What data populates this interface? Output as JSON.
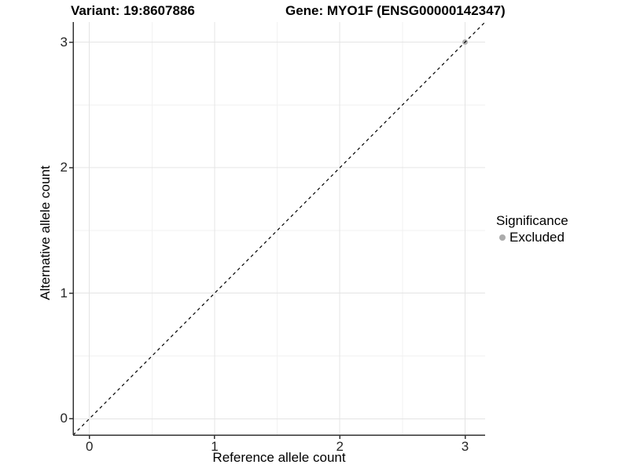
{
  "header": {
    "title_variant": "Variant: 19:8607886",
    "title_gene": "Gene: MYO1F (ENSG00000142347)"
  },
  "chart_data": {
    "type": "scatter",
    "title_variant": "Variant: 19:8607886",
    "title_gene": "Gene: MYO1F (ENSG00000142347)",
    "xlabel": "Reference allele count",
    "ylabel": "Alternative allele count",
    "xlim": [
      -0.13,
      3.16
    ],
    "ylim": [
      -0.13,
      3.16
    ],
    "x_ticks": [
      0,
      1,
      2,
      3
    ],
    "y_ticks": [
      0,
      1,
      2,
      3
    ],
    "x_tick_labels": [
      "0",
      "1",
      "2",
      "3"
    ],
    "y_tick_labels": [
      "0",
      "1",
      "2",
      "3"
    ],
    "x_minor_ticks": [
      0.5,
      1.5,
      2.5
    ],
    "y_minor_ticks": [
      0.5,
      1.5,
      2.5
    ],
    "grid": true,
    "reference_line": {
      "kind": "abline",
      "slope": 1,
      "intercept": 0,
      "style": "dashed",
      "color": "#000000"
    },
    "points": [
      {
        "x": 3,
        "y": 3,
        "series": "Excluded",
        "color": "#b0b0b0",
        "radius": 3.5
      }
    ],
    "legend": {
      "title": "Significance",
      "position": "right",
      "items": [
        {
          "label": "Excluded",
          "marker": "circle",
          "color": "#ababab"
        }
      ]
    },
    "colors": {
      "background": "#ffffff",
      "axis_line": "#333333",
      "tick_mark": "#333333",
      "tick_label": "#262626",
      "grid_major": "#e4e4e4",
      "grid_minor": "#f2f2f2",
      "title_text": "#000000"
    }
  }
}
